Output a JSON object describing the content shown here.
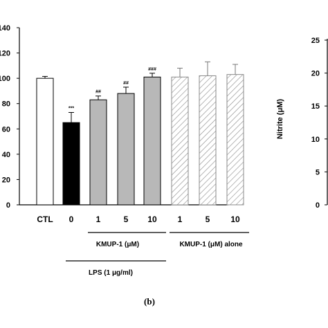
{
  "chart_data": [
    {
      "type": "bar",
      "categories": [
        "CTL",
        "0",
        "1",
        "5",
        "10",
        "1",
        "5",
        "10"
      ],
      "values": [
        100,
        65,
        83,
        88,
        101,
        101,
        102,
        103
      ],
      "errors": [
        1.5,
        8,
        3,
        5,
        3,
        7,
        11,
        8
      ],
      "significance": [
        "",
        "***",
        "##",
        "##",
        "###",
        "",
        "",
        ""
      ],
      "bar_styles": [
        "open",
        "solid",
        "gray",
        "gray",
        "gray",
        "hatched",
        "hatched",
        "hatched"
      ],
      "ylim": [
        0,
        140
      ],
      "yticks": [
        "0",
        "20",
        "40",
        "60",
        "80",
        "100",
        "120",
        "140"
      ],
      "group_labels": [
        {
          "text": "KMUP-1 (μM)",
          "covers": [
            2,
            4
          ]
        },
        {
          "text": "KMUP-1 (μM) alone",
          "covers": [
            5,
            7
          ]
        },
        {
          "text": "LPS (1 μg/ml)",
          "covers": [
            1,
            4
          ]
        }
      ],
      "colors": {
        "solid": "#000000",
        "gray": "#b8b8b8",
        "hatch": "#8a8a8a",
        "open": "#ffffff"
      }
    },
    {
      "type": "bar",
      "ylabel": "Nitrite (μM)",
      "ylim": [
        0,
        25
      ],
      "yticks": [
        "0",
        "5",
        "10",
        "15",
        "20",
        "25"
      ]
    }
  ],
  "panel_label": "(b)"
}
